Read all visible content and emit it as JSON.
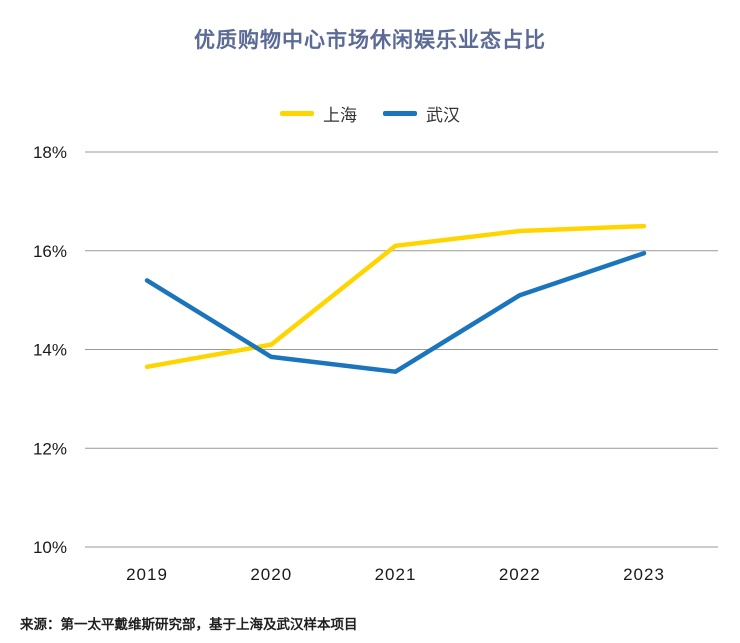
{
  "title": "优质购物中心市场休闲娱乐业态占比",
  "source_note": "来源：第一太平戴维斯研究部，基于上海及武汉样本项目",
  "colors": {
    "shanghai": "#FFD500",
    "wuhan": "#1B75BC",
    "title": "#5C6B96",
    "grid": "#999999",
    "axis_text": "#1a1a1a"
  },
  "chart_data": {
    "type": "line",
    "title": "优质购物中心市场休闲娱乐业态占比",
    "x": [
      "2019",
      "2020",
      "2021",
      "2022",
      "2023"
    ],
    "series": [
      {
        "name": "上海",
        "color_key": "shanghai",
        "values": [
          13.65,
          14.1,
          16.1,
          16.4,
          16.5
        ]
      },
      {
        "name": "武汉",
        "color_key": "wuhan",
        "values": [
          15.4,
          13.85,
          13.55,
          15.1,
          15.95
        ]
      }
    ],
    "ylim": [
      10,
      18
    ],
    "yticks": [
      10,
      12,
      14,
      16,
      18
    ],
    "ytick_format": "percent",
    "xlabel": "",
    "ylabel": "",
    "grid": "horizontal",
    "legend_position": "top"
  }
}
